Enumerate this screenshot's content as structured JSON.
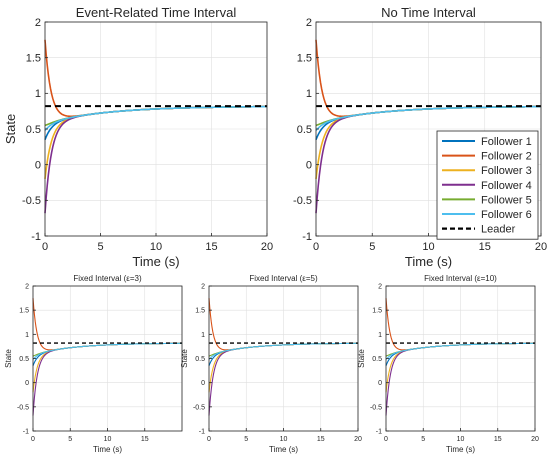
{
  "chart_data": [
    {
      "type": "line",
      "title": "Event-Related Time Interval",
      "xlabel": "Time (s)",
      "ylabel": "State",
      "xlim": [
        0,
        20
      ],
      "ylim": [
        -1,
        2
      ],
      "xticks": [
        0,
        5,
        10,
        15,
        20
      ],
      "yticks": [
        -1,
        -0.5,
        0,
        0.5,
        1,
        1.5,
        2
      ],
      "grid": true,
      "legend": "none",
      "leader_value": 0.82,
      "followers": [
        {
          "start": 0.35,
          "min": 0.58,
          "t_min": 2.0
        },
        {
          "start": 1.75,
          "min": 0.58,
          "t_min": 2.8
        },
        {
          "start": -0.2,
          "min": 0.58,
          "t_min": 2.0
        },
        {
          "start": -0.68,
          "min": 0.58,
          "t_min": 2.0
        },
        {
          "start": 0.55,
          "min": 0.58,
          "t_min": 2.0
        },
        {
          "start": 0.48,
          "min": 0.58,
          "t_min": 2.0
        }
      ],
      "series_style": "follower responses converge toward leader value"
    },
    {
      "type": "line",
      "title": "No Time Interval",
      "xlabel": "Time (s)",
      "ylabel": "",
      "xlim": [
        0,
        20
      ],
      "ylim": [
        -1,
        2
      ],
      "xticks": [
        0,
        5,
        10,
        15,
        20
      ],
      "yticks": [
        -1,
        -0.5,
        0,
        0.5,
        1,
        1.5,
        2
      ],
      "grid": true,
      "legend": "bottom-right",
      "series": [
        {
          "name": "Follower 1",
          "color": "#0072BD"
        },
        {
          "name": "Follower 2",
          "color": "#D95319"
        },
        {
          "name": "Follower 3",
          "color": "#EDB120"
        },
        {
          "name": "Follower 4",
          "color": "#7E2F8E"
        },
        {
          "name": "Follower 5",
          "color": "#77AC30"
        },
        {
          "name": "Follower 6",
          "color": "#4DBEEE"
        },
        {
          "name": "Leader",
          "color": "#000000",
          "style": "dashed"
        }
      ]
    },
    {
      "type": "line",
      "title": "Fixed Interval (ε=3)",
      "xlabel": "Time (s)",
      "ylabel": "State",
      "xlim": [
        0,
        20
      ],
      "ylim": [
        -1,
        2
      ],
      "xticks": [
        0,
        5,
        10,
        15
      ],
      "yticks": [
        -1,
        -0.5,
        0,
        0.5,
        1,
        1.5,
        2
      ],
      "grid": true
    },
    {
      "type": "line",
      "title": "Fixed Interval (ε=5)",
      "xlabel": "Time (s)",
      "ylabel": "State",
      "xlim": [
        0,
        20
      ],
      "ylim": [
        -1,
        2
      ],
      "xticks": [
        0,
        5,
        10,
        15,
        20
      ],
      "yticks": [
        -1,
        -0.5,
        0,
        0.5,
        1,
        1.5,
        2
      ],
      "grid": true
    },
    {
      "type": "line",
      "title": "Fixed Interval (ε=10)",
      "xlabel": "Time (s)",
      "ylabel": "State",
      "xlim": [
        0,
        20
      ],
      "ylim": [
        -1,
        2
      ],
      "xticks": [
        0,
        5,
        10,
        15,
        20
      ],
      "yticks": [
        -1,
        -0.5,
        0,
        0.5,
        1,
        1.5,
        2
      ],
      "grid": true
    }
  ]
}
